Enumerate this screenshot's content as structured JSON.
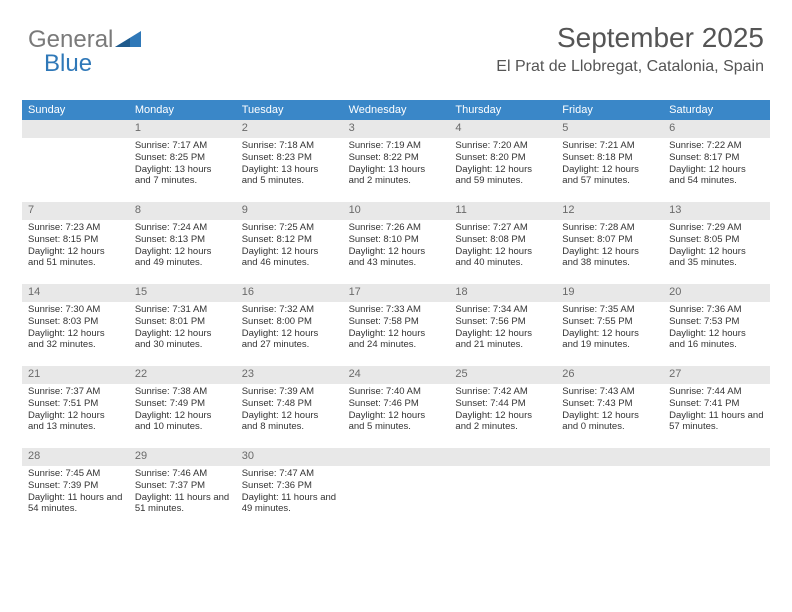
{
  "logo": {
    "text1": "General",
    "text2": "Blue"
  },
  "header": {
    "title": "September 2025",
    "subtitle": "El Prat de Llobregat, Catalonia, Spain"
  },
  "colors": {
    "header_bar": "#3a87c8",
    "day_num_bg": "#e8e8e8",
    "logo_gray": "#7a7a7a",
    "logo_blue": "#2f78b8"
  },
  "dow": [
    "Sunday",
    "Monday",
    "Tuesday",
    "Wednesday",
    "Thursday",
    "Friday",
    "Saturday"
  ],
  "weeks": [
    [
      {
        "n": "",
        "sr": "",
        "ss": "",
        "dl": ""
      },
      {
        "n": "1",
        "sr": "Sunrise: 7:17 AM",
        "ss": "Sunset: 8:25 PM",
        "dl": "Daylight: 13 hours and 7 minutes."
      },
      {
        "n": "2",
        "sr": "Sunrise: 7:18 AM",
        "ss": "Sunset: 8:23 PM",
        "dl": "Daylight: 13 hours and 5 minutes."
      },
      {
        "n": "3",
        "sr": "Sunrise: 7:19 AM",
        "ss": "Sunset: 8:22 PM",
        "dl": "Daylight: 13 hours and 2 minutes."
      },
      {
        "n": "4",
        "sr": "Sunrise: 7:20 AM",
        "ss": "Sunset: 8:20 PM",
        "dl": "Daylight: 12 hours and 59 minutes."
      },
      {
        "n": "5",
        "sr": "Sunrise: 7:21 AM",
        "ss": "Sunset: 8:18 PM",
        "dl": "Daylight: 12 hours and 57 minutes."
      },
      {
        "n": "6",
        "sr": "Sunrise: 7:22 AM",
        "ss": "Sunset: 8:17 PM",
        "dl": "Daylight: 12 hours and 54 minutes."
      }
    ],
    [
      {
        "n": "7",
        "sr": "Sunrise: 7:23 AM",
        "ss": "Sunset: 8:15 PM",
        "dl": "Daylight: 12 hours and 51 minutes."
      },
      {
        "n": "8",
        "sr": "Sunrise: 7:24 AM",
        "ss": "Sunset: 8:13 PM",
        "dl": "Daylight: 12 hours and 49 minutes."
      },
      {
        "n": "9",
        "sr": "Sunrise: 7:25 AM",
        "ss": "Sunset: 8:12 PM",
        "dl": "Daylight: 12 hours and 46 minutes."
      },
      {
        "n": "10",
        "sr": "Sunrise: 7:26 AM",
        "ss": "Sunset: 8:10 PM",
        "dl": "Daylight: 12 hours and 43 minutes."
      },
      {
        "n": "11",
        "sr": "Sunrise: 7:27 AM",
        "ss": "Sunset: 8:08 PM",
        "dl": "Daylight: 12 hours and 40 minutes."
      },
      {
        "n": "12",
        "sr": "Sunrise: 7:28 AM",
        "ss": "Sunset: 8:07 PM",
        "dl": "Daylight: 12 hours and 38 minutes."
      },
      {
        "n": "13",
        "sr": "Sunrise: 7:29 AM",
        "ss": "Sunset: 8:05 PM",
        "dl": "Daylight: 12 hours and 35 minutes."
      }
    ],
    [
      {
        "n": "14",
        "sr": "Sunrise: 7:30 AM",
        "ss": "Sunset: 8:03 PM",
        "dl": "Daylight: 12 hours and 32 minutes."
      },
      {
        "n": "15",
        "sr": "Sunrise: 7:31 AM",
        "ss": "Sunset: 8:01 PM",
        "dl": "Daylight: 12 hours and 30 minutes."
      },
      {
        "n": "16",
        "sr": "Sunrise: 7:32 AM",
        "ss": "Sunset: 8:00 PM",
        "dl": "Daylight: 12 hours and 27 minutes."
      },
      {
        "n": "17",
        "sr": "Sunrise: 7:33 AM",
        "ss": "Sunset: 7:58 PM",
        "dl": "Daylight: 12 hours and 24 minutes."
      },
      {
        "n": "18",
        "sr": "Sunrise: 7:34 AM",
        "ss": "Sunset: 7:56 PM",
        "dl": "Daylight: 12 hours and 21 minutes."
      },
      {
        "n": "19",
        "sr": "Sunrise: 7:35 AM",
        "ss": "Sunset: 7:55 PM",
        "dl": "Daylight: 12 hours and 19 minutes."
      },
      {
        "n": "20",
        "sr": "Sunrise: 7:36 AM",
        "ss": "Sunset: 7:53 PM",
        "dl": "Daylight: 12 hours and 16 minutes."
      }
    ],
    [
      {
        "n": "21",
        "sr": "Sunrise: 7:37 AM",
        "ss": "Sunset: 7:51 PM",
        "dl": "Daylight: 12 hours and 13 minutes."
      },
      {
        "n": "22",
        "sr": "Sunrise: 7:38 AM",
        "ss": "Sunset: 7:49 PM",
        "dl": "Daylight: 12 hours and 10 minutes."
      },
      {
        "n": "23",
        "sr": "Sunrise: 7:39 AM",
        "ss": "Sunset: 7:48 PM",
        "dl": "Daylight: 12 hours and 8 minutes."
      },
      {
        "n": "24",
        "sr": "Sunrise: 7:40 AM",
        "ss": "Sunset: 7:46 PM",
        "dl": "Daylight: 12 hours and 5 minutes."
      },
      {
        "n": "25",
        "sr": "Sunrise: 7:42 AM",
        "ss": "Sunset: 7:44 PM",
        "dl": "Daylight: 12 hours and 2 minutes."
      },
      {
        "n": "26",
        "sr": "Sunrise: 7:43 AM",
        "ss": "Sunset: 7:43 PM",
        "dl": "Daylight: 12 hours and 0 minutes."
      },
      {
        "n": "27",
        "sr": "Sunrise: 7:44 AM",
        "ss": "Sunset: 7:41 PM",
        "dl": "Daylight: 11 hours and 57 minutes."
      }
    ],
    [
      {
        "n": "28",
        "sr": "Sunrise: 7:45 AM",
        "ss": "Sunset: 7:39 PM",
        "dl": "Daylight: 11 hours and 54 minutes."
      },
      {
        "n": "29",
        "sr": "Sunrise: 7:46 AM",
        "ss": "Sunset: 7:37 PM",
        "dl": "Daylight: 11 hours and 51 minutes."
      },
      {
        "n": "30",
        "sr": "Sunrise: 7:47 AM",
        "ss": "Sunset: 7:36 PM",
        "dl": "Daylight: 11 hours and 49 minutes."
      },
      {
        "n": "",
        "sr": "",
        "ss": "",
        "dl": ""
      },
      {
        "n": "",
        "sr": "",
        "ss": "",
        "dl": ""
      },
      {
        "n": "",
        "sr": "",
        "ss": "",
        "dl": ""
      },
      {
        "n": "",
        "sr": "",
        "ss": "",
        "dl": ""
      }
    ]
  ]
}
